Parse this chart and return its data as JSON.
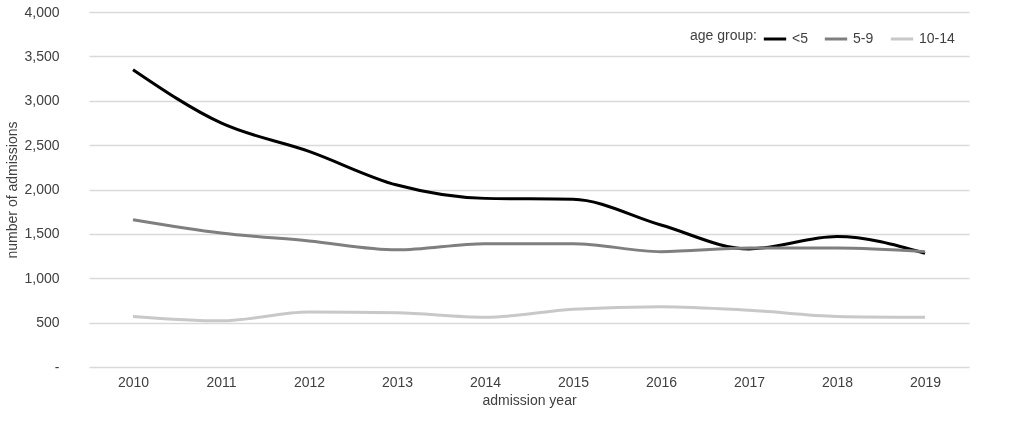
{
  "chart_data": {
    "type": "line",
    "xlabel": "admission year",
    "ylabel": "number of admissions",
    "legend_title": "age group:",
    "categories": [
      "2010",
      "2011",
      "2012",
      "2013",
      "2014",
      "2015",
      "2016",
      "2017",
      "2018",
      "2019"
    ],
    "series": [
      {
        "name": "<5",
        "color": "#000000",
        "values": [
          3350,
          2750,
          2430,
          2050,
          1900,
          1890,
          1600,
          1330,
          1470,
          1280
        ]
      },
      {
        "name": "5-9",
        "color": "#7f7f7f",
        "values": [
          1660,
          1510,
          1420,
          1320,
          1390,
          1390,
          1300,
          1340,
          1340,
          1300
        ]
      },
      {
        "name": "10-14",
        "color": "#c8c8c8",
        "values": [
          570,
          520,
          620,
          610,
          560,
          650,
          680,
          640,
          570,
          560
        ]
      }
    ],
    "ylim": [
      0,
      4000
    ],
    "yticks": [
      {
        "value": 0,
        "label": "-"
      },
      {
        "value": 500,
        "label": "500"
      },
      {
        "value": 1000,
        "label": "1,000"
      },
      {
        "value": 1500,
        "label": "1,500"
      },
      {
        "value": 2000,
        "label": "2,000"
      },
      {
        "value": 2500,
        "label": "2,500"
      },
      {
        "value": 3000,
        "label": "3,000"
      },
      {
        "value": 3500,
        "label": "3,500"
      },
      {
        "value": 4000,
        "label": "4,000"
      }
    ],
    "grid": "y",
    "legend": "top right",
    "marker": "none",
    "line_style": "solid"
  }
}
